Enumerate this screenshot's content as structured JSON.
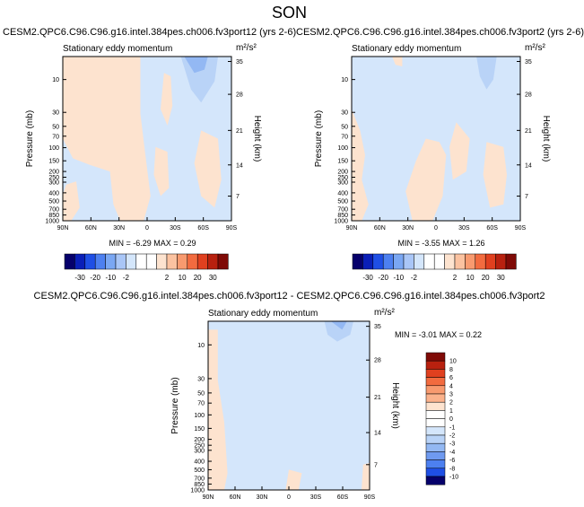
{
  "figure": {
    "season_title": "SON"
  },
  "colors": {
    "blue_pale": "#d4e6fb",
    "blue_light": "#b9d3f7",
    "blue_mid": "#93b8f3",
    "pink_pale": "#fde3cf",
    "frame": "#000000"
  },
  "chart_data": [
    {
      "type": "heatmap",
      "id": "panel_case",
      "title": "CESM2.QPC6.C96.C96.g16.intel.384pes.ch006.fv3port12 (yrs 2-6)",
      "subtitle": "Stationary eddy momentum",
      "units_label": "m²/s²",
      "ylabel": "Pressure (mb)",
      "y2label": "Height (km)",
      "x_ticks": [
        "90N",
        "60N",
        "30N",
        "0",
        "30S",
        "60S",
        "90S"
      ],
      "x_tick_values": [
        90,
        60,
        30,
        0,
        -30,
        -60,
        -90
      ],
      "xlim": [
        90,
        -90
      ],
      "y_ticks": [
        "10",
        "30",
        "50",
        "70",
        "100",
        "150",
        "200",
        "250",
        "300",
        "400",
        "500",
        "700",
        "850",
        "1000"
      ],
      "y_tick_values": [
        10,
        30,
        50,
        70,
        100,
        150,
        200,
        250,
        300,
        400,
        500,
        700,
        850,
        1000
      ],
      "ylim": [
        1000,
        5
      ],
      "y2_ticks": [
        "35",
        "28",
        "21",
        "14",
        "7"
      ],
      "y2_tick_values": [
        35,
        28,
        21,
        14,
        7
      ],
      "min_value": -6.29,
      "max_value": 0.29,
      "stats_text": "MIN = -6.29  MAX = 0.29",
      "colorbar_labels": [
        "-30",
        "-20",
        "-10",
        "-2",
        "2",
        "10",
        "20",
        "30"
      ]
    },
    {
      "type": "heatmap",
      "id": "panel_control",
      "title": "CESM2.QPC6.C96.C96.g16.intel.384pes.ch006.fv3port2 (yrs 2-6)",
      "subtitle": "Stationary eddy momentum",
      "units_label": "m²/s²",
      "ylabel": "Pressure (mb)",
      "y2label": "Height (km)",
      "x_ticks": [
        "90N",
        "60N",
        "30N",
        "0",
        "30S",
        "60S",
        "90S"
      ],
      "x_tick_values": [
        90,
        60,
        30,
        0,
        -30,
        -60,
        -90
      ],
      "xlim": [
        90,
        -90
      ],
      "y_ticks": [
        "10",
        "30",
        "50",
        "70",
        "100",
        "150",
        "200",
        "250",
        "300",
        "400",
        "500",
        "700",
        "850",
        "1000"
      ],
      "y_tick_values": [
        10,
        30,
        50,
        70,
        100,
        150,
        200,
        250,
        300,
        400,
        500,
        700,
        850,
        1000
      ],
      "ylim": [
        1000,
        5
      ],
      "y2_ticks": [
        "35",
        "28",
        "21",
        "14",
        "7"
      ],
      "y2_tick_values": [
        35,
        28,
        21,
        14,
        7
      ],
      "min_value": -3.55,
      "max_value": 1.26,
      "stats_text": "MIN = -3.55  MAX = 1.26",
      "colorbar_labels": [
        "-30",
        "-20",
        "-10",
        "-2",
        "2",
        "10",
        "20",
        "30"
      ]
    },
    {
      "type": "heatmap",
      "id": "panel_diff",
      "title": "CESM2.QPC6.C96.C96.g16.intel.384pes.ch006.fv3port12 - CESM2.QPC6.C96.C96.g16.intel.384pes.ch006.fv3port2",
      "subtitle": "Stationary eddy momentum",
      "units_label": "m²/s²",
      "ylabel": "Pressure (mb)",
      "y2label": "Height (km)",
      "x_ticks": [
        "90N",
        "60N",
        "30N",
        "0",
        "30S",
        "60S",
        "90S"
      ],
      "x_tick_values": [
        90,
        60,
        30,
        0,
        -30,
        -60,
        -90
      ],
      "xlim": [
        90,
        -90
      ],
      "y_ticks": [
        "10",
        "30",
        "50",
        "70",
        "100",
        "150",
        "200",
        "250",
        "300",
        "400",
        "500",
        "700",
        "850",
        "1000"
      ],
      "y_tick_values": [
        10,
        30,
        50,
        70,
        100,
        150,
        200,
        250,
        300,
        400,
        500,
        700,
        850,
        1000
      ],
      "ylim": [
        1000,
        5
      ],
      "y2_ticks": [
        "35",
        "28",
        "21",
        "14",
        "7"
      ],
      "y2_tick_values": [
        35,
        28,
        21,
        14,
        7
      ],
      "min_value": -3.01,
      "max_value": 0.22,
      "stats_text": "MIN = -3.01  MAX = 0.22",
      "colorbar_labels": [
        "10",
        "8",
        "6",
        "4",
        "3",
        "2",
        "1",
        "0",
        "-1",
        "-2",
        "-3",
        "-4",
        "-6",
        "-8",
        "-10"
      ]
    }
  ],
  "colorbars": {
    "top_colors": [
      "#06006b",
      "#0a1fb8",
      "#1f4fe5",
      "#4d80f0",
      "#7aa7f3",
      "#a9c6f7",
      "#d4e6fb",
      "#ffffff",
      "#ffffff",
      "#fde3cf",
      "#fbc2a0",
      "#f89a6f",
      "#f26b3f",
      "#e0401f",
      "#b8210f",
      "#7f0a06"
    ],
    "diff_colors": [
      "#7f0a06",
      "#b8210f",
      "#e0401f",
      "#f26b3f",
      "#f89a6f",
      "#fbb28c",
      "#fde3cf",
      "#ffffff",
      "#ffffff",
      "#d4e6fb",
      "#b9d3f7",
      "#93b8f3",
      "#6f9af0",
      "#4d80f0",
      "#1f4fe5",
      "#06006b"
    ]
  }
}
